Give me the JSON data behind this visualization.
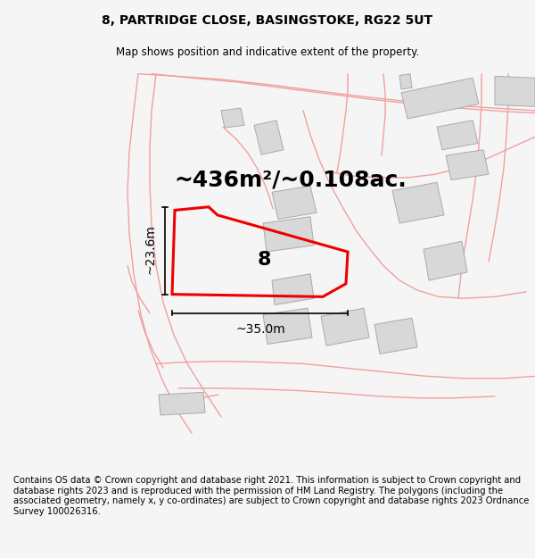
{
  "title": "8, PARTRIDGE CLOSE, BASINGSTOKE, RG22 5UT",
  "subtitle": "Map shows position and indicative extent of the property.",
  "area_text": "~436m²/~0.108ac.",
  "label_8": "8",
  "dim_width": "~35.0m",
  "dim_height": "~23.6m",
  "footer": "Contains OS data © Crown copyright and database right 2021. This information is subject to Crown copyright and database rights 2023 and is reproduced with the permission of HM Land Registry. The polygons (including the associated geometry, namely x, y co-ordinates) are subject to Crown copyright and database rights 2023 Ordnance Survey 100026316.",
  "bg_color": "#f5f5f5",
  "map_bg": "#ffffff",
  "road_color": "#f0a0a0",
  "building_color": "#d8d8d8",
  "building_edge": "#aaaaaa",
  "highlight_color": "#ee0000",
  "title_fontsize": 10,
  "subtitle_fontsize": 8.5,
  "area_fontsize": 18,
  "label_fontsize": 16,
  "dim_fontsize": 10,
  "footer_fontsize": 7.2
}
